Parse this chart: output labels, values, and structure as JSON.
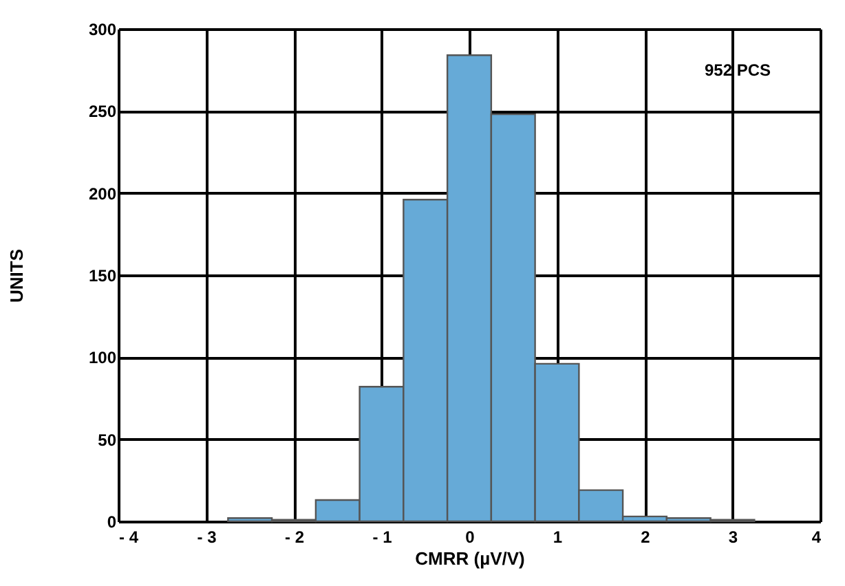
{
  "chart_data": {
    "type": "histogram",
    "xlabel": "CMRR (µV/V)",
    "ylabel": "UNITS",
    "annotations": [
      "952  PCS"
    ],
    "bins": [
      -2.75,
      -2.25,
      -1.75,
      -1.25,
      -0.75,
      -0.25,
      0.25,
      0.75,
      1.25,
      1.75,
      2.25,
      2.75,
      3.25
    ],
    "values": [
      2,
      1,
      13,
      82,
      196,
      284,
      248,
      96,
      19,
      3,
      2,
      1
    ],
    "color": "#66aad7",
    "xlim": [
      -4,
      4
    ],
    "ylim": [
      0,
      300
    ],
    "xticks": [
      {
        "value": -4,
        "label": "- 4"
      },
      {
        "value": -3,
        "label": "- 3"
      },
      {
        "value": -2,
        "label": "- 2"
      },
      {
        "value": -1,
        "label": "- 1"
      },
      0,
      1,
      2,
      3,
      4
    ],
    "yticks": [
      0,
      50,
      100,
      150,
      200,
      250,
      300
    ],
    "grid": true
  }
}
